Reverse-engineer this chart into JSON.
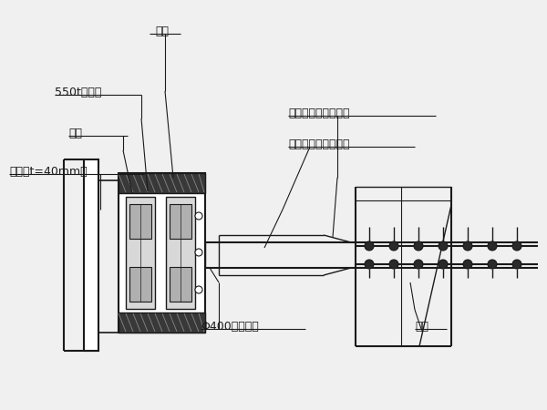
{
  "bg_color": "#f0f0f0",
  "line_color": "#1a1a1a",
  "white": "#ffffff",
  "dark": "#2a2a2a",
  "mid_gray": "#aaaaaa",
  "light_gray": "#cccccc",
  "hatch_gray": "#555555",
  "labels": {
    "prop_head": "搽脚",
    "jack": "550t千斤顶",
    "pad": "垫板",
    "steel_plate": "钢板（t=40mm）",
    "reducer": "斜拉索施工用变径头",
    "open_plate": "斜拉索施工用开合板",
    "pipe": "Φ400无缝钢管",
    "haunch": "牛腿"
  },
  "fig_width": 6.0,
  "fig_height": 4.5,
  "dpi": 100
}
